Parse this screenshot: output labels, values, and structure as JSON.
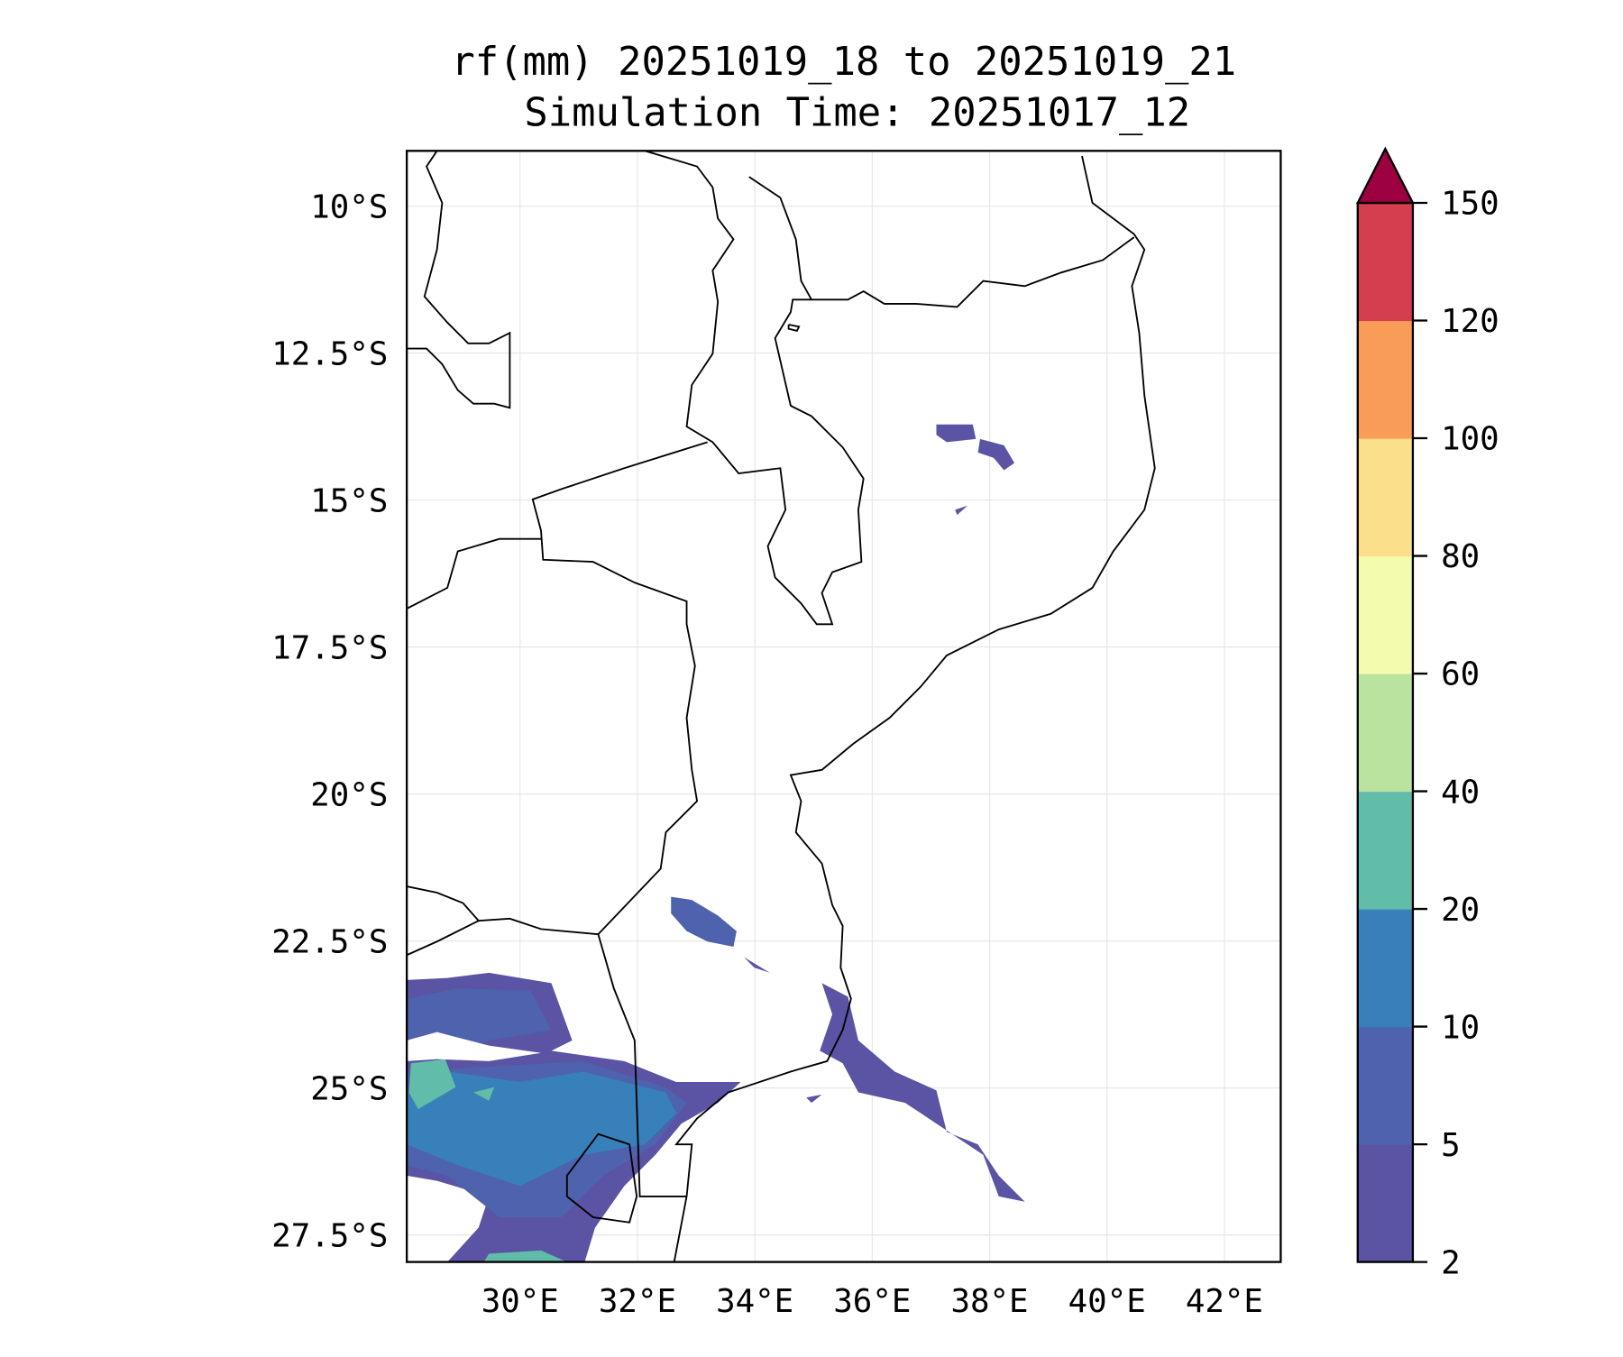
{
  "chart_data": {
    "type": "heatmap",
    "title_line1": "rf(mm) 20251019_18 to 20251019_21",
    "title_line2": "Simulation Time: 20251017_12",
    "variable": "rf(mm)",
    "lon_range": [
      28.07,
      42.96
    ],
    "lat_range": [
      -27.96,
      -9.06
    ],
    "x_ticks": [
      {
        "value": 30,
        "label": "30°E"
      },
      {
        "value": 32,
        "label": "32°E"
      },
      {
        "value": 34,
        "label": "34°E"
      },
      {
        "value": 36,
        "label": "36°E"
      },
      {
        "value": 38,
        "label": "38°E"
      },
      {
        "value": 40,
        "label": "40°E"
      },
      {
        "value": 42,
        "label": "42°E"
      }
    ],
    "y_ticks": [
      {
        "value": -10,
        "label": "10°S"
      },
      {
        "value": -12.5,
        "label": "12.5°S"
      },
      {
        "value": -15,
        "label": "15°S"
      },
      {
        "value": -17.5,
        "label": "17.5°S"
      },
      {
        "value": -20,
        "label": "20°S"
      },
      {
        "value": -22.5,
        "label": "22.5°S"
      },
      {
        "value": -25,
        "label": "25°S"
      },
      {
        "value": -27.5,
        "label": "27.5°S"
      }
    ],
    "grid": true,
    "colorbar": {
      "placement": "right",
      "extend": "max",
      "levels": [
        "2",
        "5",
        "10",
        "20",
        "40",
        "60",
        "80",
        "100",
        "120",
        "150"
      ],
      "colors": [
        "#5b53a4",
        "#4e62ad",
        "#3880b9",
        "#62bcaa",
        "#bbe3a0",
        "#f3fbae",
        "#fcdf8a",
        "#f99c58",
        "#d53e4f"
      ],
      "over_color": "#9e0142"
    }
  }
}
